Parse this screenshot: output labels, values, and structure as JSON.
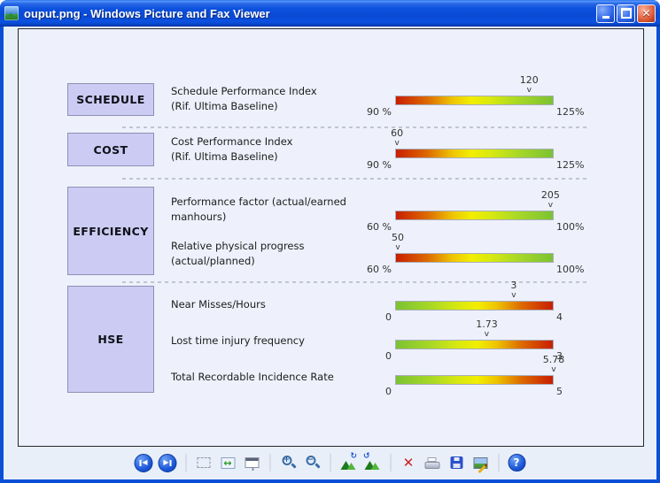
{
  "window": {
    "title": "ouput.png - Windows Picture and Fax Viewer",
    "close_glyph": "✕"
  },
  "dashboard": {
    "marker_glyph": "v",
    "sections": [
      {
        "label": "SCHEDULE",
        "metrics": [
          {
            "lines": [
              "Schedule Performance Index",
              "(Rif. Ultima Baseline)"
            ],
            "scale_min": "90 %",
            "scale_max": "125%",
            "value": "120",
            "value_numeric": 120,
            "range": [
              90,
              125
            ],
            "marker_pos": "84.5%",
            "gradient": "red-to-green"
          }
        ]
      },
      {
        "label": "COST",
        "metrics": [
          {
            "lines": [
              "Cost Performance Index",
              "(Rif. Ultima Baseline)"
            ],
            "scale_min": "90 %",
            "scale_max": "125%",
            "value": "60",
            "value_numeric": 60,
            "range": [
              90,
              125
            ],
            "marker_pos": "1.2%",
            "gradient": "red-to-green"
          }
        ]
      },
      {
        "label": "EFFICIENCY",
        "metrics": [
          {
            "lines": [
              "Performance factor (actual/earned",
              "manhours)"
            ],
            "scale_min": "60 %",
            "scale_max": "100%",
            "value": "205",
            "value_numeric": 205,
            "range": [
              60,
              100
            ],
            "marker_pos": "98%",
            "gradient": "red-to-green"
          },
          {
            "lines": [
              "Relative physical progress",
              "(actual/planned)"
            ],
            "scale_min": "60 %",
            "scale_max": "100%",
            "value": "50",
            "value_numeric": 50,
            "range": [
              60,
              100
            ],
            "marker_pos": "1.7%",
            "gradient": "red-to-green"
          }
        ]
      },
      {
        "label": "HSE",
        "metrics": [
          {
            "lines": [
              "Near Misses/Hours"
            ],
            "scale_min": "0",
            "scale_max": "4",
            "value": "3",
            "value_numeric": 3,
            "range": [
              0,
              4
            ],
            "marker_pos": "74.8%",
            "gradient": "green-to-red"
          },
          {
            "lines": [
              "Lost time injury frequency"
            ],
            "scale_min": "0",
            "scale_max": "3",
            "value": "1.73",
            "value_numeric": 1.73,
            "range": [
              0,
              3
            ],
            "marker_pos": "57.8%",
            "gradient": "green-to-red"
          },
          {
            "lines": [
              "Total Recordable Incidence Rate"
            ],
            "scale_min": "0",
            "scale_max": "5",
            "value": "5.78",
            "value_numeric": 5.78,
            "range": [
              0,
              5
            ],
            "marker_pos": "100%",
            "gradient": "green-to-red"
          }
        ]
      }
    ]
  },
  "toolbar": {
    "icons": [
      "previous-image",
      "next-image",
      "best-fit",
      "actual-size",
      "start-slideshow",
      "zoom-in",
      "zoom-out",
      "rotate-clockwise",
      "rotate-counterclockwise",
      "delete",
      "print",
      "save",
      "edit",
      "help"
    ],
    "glyphs": {
      "previous": "◀",
      "next": "▶",
      "zoom_in": "+",
      "zoom_out": "−",
      "rotate_cw": "↻",
      "rotate_ccw": "↺",
      "delete": "✕",
      "help": "?",
      "actual_size": "↔"
    }
  },
  "colors": {
    "titlebar_blue": "#0d51dd",
    "box_fill": "#cbcbf3",
    "box_border": "#8f8fb4",
    "bar_red": "#c81e00",
    "bar_green": "#7cc233",
    "image_background": "#eef1fb",
    "chrome_background": "#e9eff9"
  }
}
